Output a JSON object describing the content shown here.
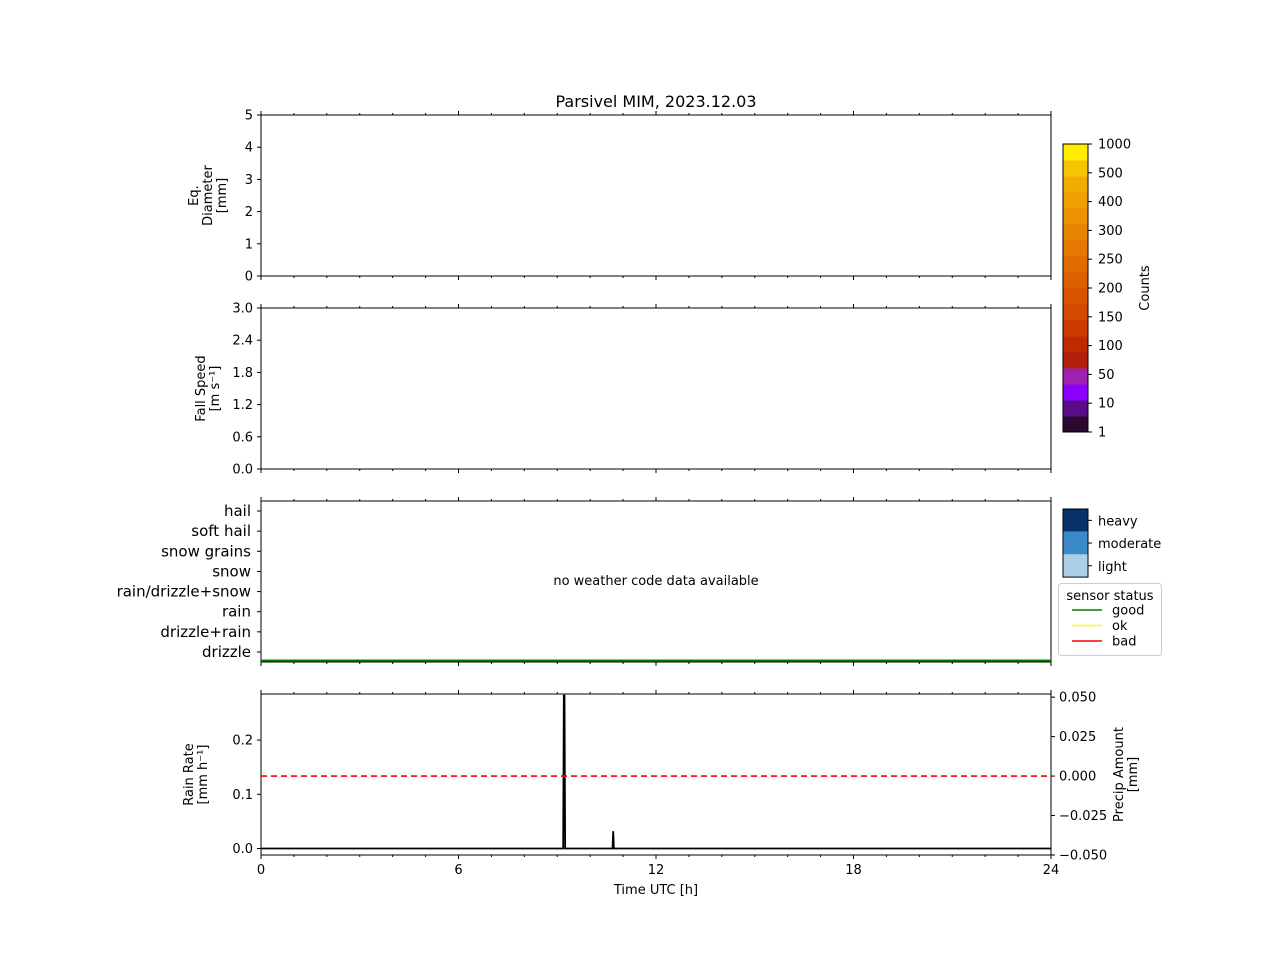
{
  "title": "Parsivel MIM, 2023.12.03",
  "chart_data": [
    {
      "type": "heatmap",
      "ylabel": [
        "Eq.",
        "Diameter",
        "[mm]"
      ],
      "xlim": [
        0,
        24
      ],
      "ylim": [
        0,
        5
      ],
      "yticks": [
        "0",
        "1",
        "2",
        "3",
        "4",
        "5"
      ],
      "ytick_values": [
        0,
        1,
        2,
        3,
        4,
        5
      ],
      "values": []
    },
    {
      "type": "heatmap",
      "ylabel": [
        "Fall Speed",
        "[m s⁻¹]"
      ],
      "xlim": [
        0,
        24
      ],
      "ylim": [
        0,
        3
      ],
      "yticks": [
        "0.0",
        "0.6",
        "1.2",
        "1.8",
        "2.4",
        "3.0"
      ],
      "ytick_values": [
        0,
        0.6,
        1.2,
        1.8,
        2.4,
        3.0
      ],
      "values": []
    },
    {
      "type": "heatmap",
      "categories": [
        "hail",
        "soft hail",
        "snow grains",
        "snow",
        "rain/drizzle+snow",
        "rain",
        "drizzle+rain",
        "drizzle"
      ],
      "annotation": "no weather code data available",
      "xlim": [
        0,
        24
      ],
      "intensity_legend": [
        "heavy",
        "moderate",
        "light"
      ],
      "intensity_colors": [
        "#08306b",
        "#3a8ac9",
        "#aacfe6"
      ],
      "sensor_status_legend": {
        "title": "sensor status",
        "entries": [
          {
            "name": "good",
            "color": "#008000"
          },
          {
            "name": "ok",
            "color": "#ffff00"
          },
          {
            "name": "bad",
            "color": "#ff0000"
          }
        ]
      },
      "sensor_status_series": {
        "name": "good",
        "x": [
          0,
          24
        ],
        "value": "good"
      }
    },
    {
      "type": "line",
      "xlabel": "Time UTC [h]",
      "ylabel": [
        "Rain Rate",
        "[mm h⁻¹]"
      ],
      "ylabel_right": [
        "Precip Amount",
        "[mm]"
      ],
      "xlim": [
        0,
        24
      ],
      "xticks": [
        "0",
        "6",
        "12",
        "18",
        "24"
      ],
      "xtick_values": [
        0,
        6,
        12,
        18,
        24
      ],
      "ylim": [
        -0.012,
        0.285
      ],
      "yticks": [
        "0.0",
        "0.1",
        "0.2"
      ],
      "ytick_values": [
        0,
        0.1,
        0.2
      ],
      "ylim_right": [
        -0.05,
        0.052
      ],
      "yticks_right": [
        "0.050",
        "0.025",
        "0.000",
        "−0.025",
        "−0.050"
      ],
      "ytick_values_right": [
        0.05,
        0.025,
        0,
        -0.025,
        -0.05
      ],
      "series": [
        {
          "color": "#000000",
          "x": [
            0,
            9.18,
            9.2,
            9.22,
            9.24,
            10.68,
            10.7,
            10.72,
            24
          ],
          "y": [
            0,
            0,
            0.282,
            0.282,
            0,
            0,
            0.032,
            0,
            0
          ]
        },
        {
          "color": "#ff0000",
          "style": "dashed",
          "axis": "right",
          "x": [
            0,
            24
          ],
          "y": [
            0,
            0
          ]
        }
      ]
    }
  ],
  "colorbar": {
    "label": "Counts",
    "ticks": [
      "1",
      "10",
      "50",
      "100",
      "150",
      "200",
      "250",
      "300",
      "400",
      "500",
      "1000"
    ],
    "colors": [
      "#2a0a2e",
      "#5a0b8a",
      "#8b00ff",
      "#a020b0",
      "#b32010",
      "#c02a00",
      "#cc3a00",
      "#d44800",
      "#d85400",
      "#dc6000",
      "#e06c00",
      "#e47800",
      "#e88400",
      "#ec9200",
      "#efa000",
      "#f2ae00",
      "#f6c400",
      "#ffee00"
    ]
  }
}
